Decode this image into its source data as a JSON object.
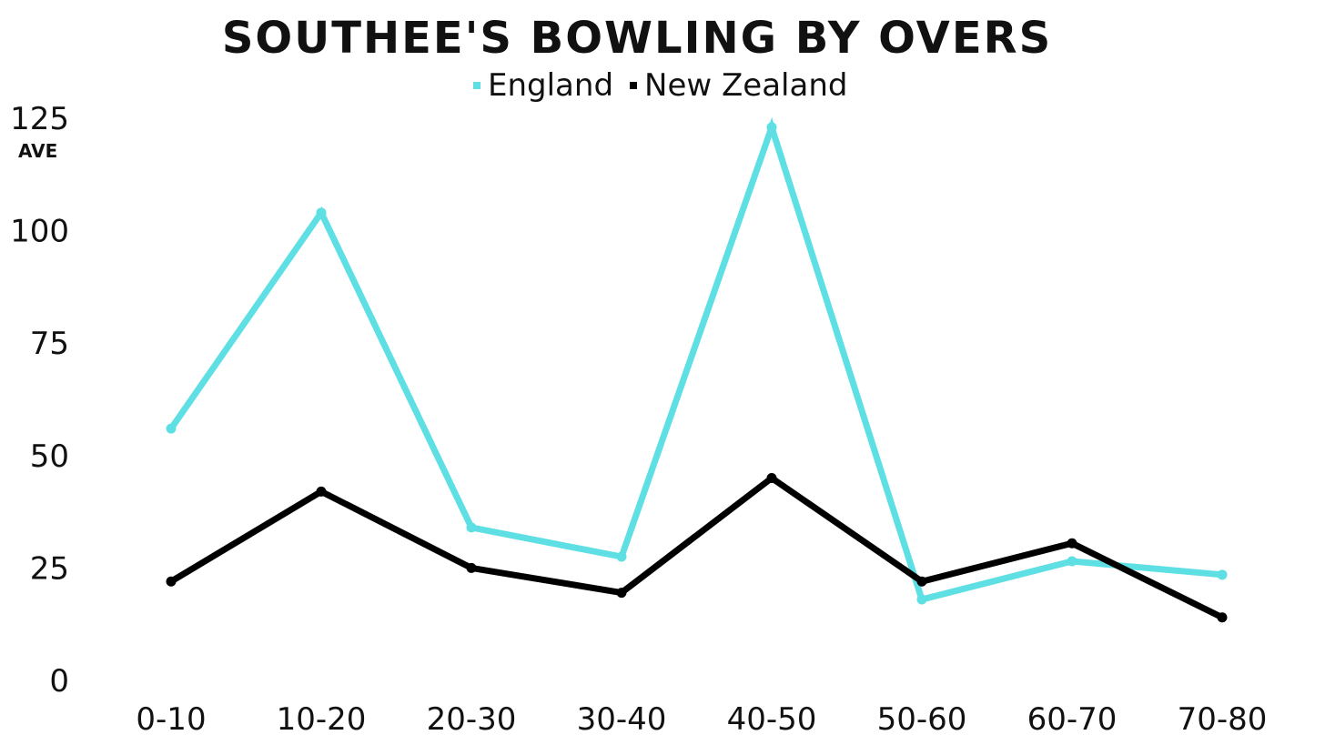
{
  "chart_data": {
    "type": "line",
    "title": "SOUTHEE'S BOWLING BY OVERS",
    "ylabel": "AVE",
    "xlabel": "",
    "categories": [
      "0-10",
      "10-20",
      "20-30",
      "30-40",
      "40-50",
      "50-60",
      "60-70",
      "70-80"
    ],
    "y_ticks": [
      "0",
      "25",
      "50",
      "75",
      "100",
      "125"
    ],
    "ylim": [
      0,
      125
    ],
    "grid": false,
    "legend_position": "top-center",
    "series": [
      {
        "name": "England",
        "color": "#5ddfe4",
        "values": [
          56,
          104,
          34,
          27.5,
          123,
          18,
          26.5,
          23.5
        ]
      },
      {
        "name": "New Zealand",
        "color": "#000000",
        "values": [
          22,
          42,
          25,
          19.5,
          45,
          22,
          30.5,
          14
        ]
      }
    ]
  }
}
